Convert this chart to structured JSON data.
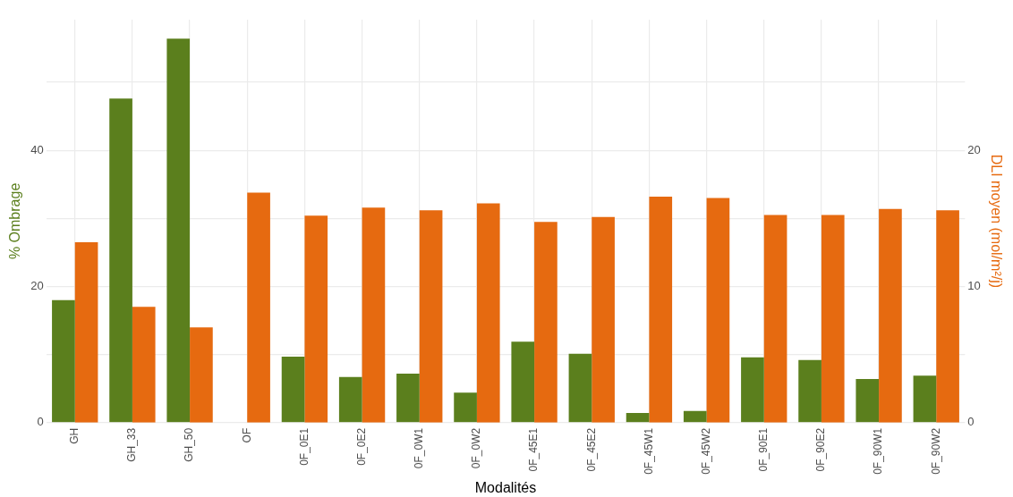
{
  "chart_data": {
    "type": "bar",
    "xlabel": "Modalités",
    "ylabel": "% Ombrage",
    "y2label": "DLI moyen (mol/m²/j)",
    "categories": [
      "GH",
      "GH_33",
      "GH_50",
      "OF",
      "0F_0E1",
      "0F_0E2",
      "0F_0W1",
      "0F_0W2",
      "0F_45E1",
      "0F_45E2",
      "0F_45W1",
      "0F_45W2",
      "0F_90E1",
      "0F_90E2",
      "0F_90W1",
      "0F_90W2"
    ],
    "series": [
      {
        "color": "#5b7f1d",
        "values": [
          18.0,
          47.6,
          56.4,
          0,
          9.7,
          6.7,
          7.2,
          4.4,
          11.9,
          10.1,
          1.4,
          1.7,
          9.6,
          9.2,
          6.4,
          6.9
        ]
      },
      {
        "color": "#e66a10",
        "axis": "y2",
        "values": [
          13.25,
          8.5,
          7.0,
          16.9,
          15.2,
          15.8,
          15.6,
          16.1,
          14.75,
          15.1,
          16.6,
          16.5,
          15.25,
          15.25,
          15.7,
          15.6
        ]
      }
    ],
    "ylim": [
      0,
      59.2
    ],
    "yticks": [
      0,
      {
        "value": 10,
        "label": null
      },
      20,
      {
        "value": 30,
        "label": null
      },
      40,
      {
        "value": 50,
        "label": null
      }
    ],
    "y2lim": [
      0,
      29.6
    ],
    "y2ticks": [
      0,
      10,
      20
    ],
    "grid": true,
    "legend": false
  }
}
